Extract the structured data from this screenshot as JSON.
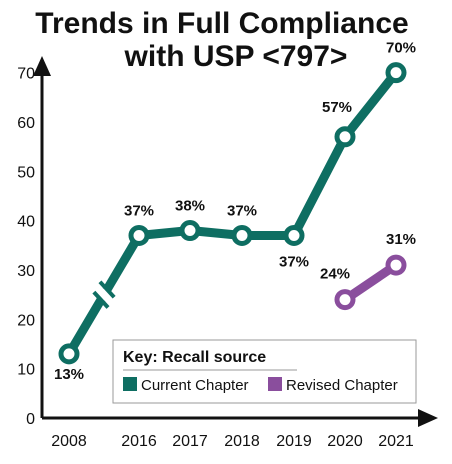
{
  "chart_data": {
    "type": "line",
    "title_lines": [
      "Trends in Full Compliance",
      "with USP <797>"
    ],
    "categories": [
      "2008",
      "2016",
      "2017",
      "2018",
      "2019",
      "2020",
      "2021"
    ],
    "y_ticks": [
      "0",
      "10",
      "20",
      "30",
      "40",
      "50",
      "60",
      "70"
    ],
    "ylim": [
      0,
      75
    ],
    "axis_break_between": [
      "2008",
      "2016"
    ],
    "series": [
      {
        "name": "Current Chapter",
        "color": "#0e6e62",
        "values": [
          13,
          37,
          38,
          37,
          37,
          57,
          70
        ],
        "labels": [
          "13%",
          "37%",
          "38%",
          "37%",
          "37%",
          "57%",
          "70%"
        ]
      },
      {
        "name": "Revised Chapter",
        "color": "#8a4e9d",
        "values": [
          null,
          null,
          null,
          null,
          null,
          24,
          31
        ],
        "labels": [
          "",
          "",
          "",
          "",
          "",
          "24%",
          "31%"
        ]
      }
    ],
    "legend": {
      "title": "Key: Recall source",
      "placement": "bottom-right"
    },
    "grid": false
  }
}
